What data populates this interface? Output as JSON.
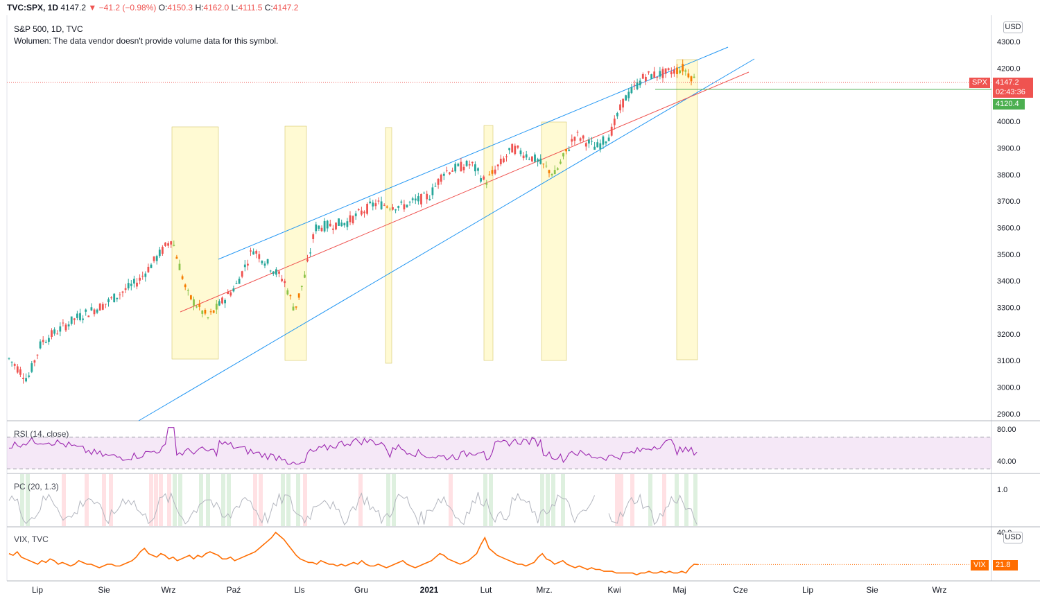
{
  "header": {
    "symbol": "TVC:SPX, 1D",
    "last": "4147.2",
    "arrow": "▼",
    "change": "−41.2 (−0.98%)",
    "o_label": "O:",
    "o_value": "4150.3",
    "h_label": "H:",
    "h_value": "4162.0",
    "l_label": "L:",
    "l_value": "4111.5",
    "c_label": "C:",
    "c_value": "4147.2"
  },
  "main_pane": {
    "title": "S&P 500, 1D, TVC",
    "volume_note": "Wolumen: The data vendor doesn't provide volume data for this symbol.",
    "currency_button": "USD",
    "price_axis": [
      "4300.0",
      "4200.0",
      "4100.0",
      "4000.0",
      "3900.0",
      "3800.0",
      "3700.0",
      "3600.0",
      "3500.0",
      "3400.0",
      "3300.0",
      "3200.0",
      "3100.0",
      "3000.0",
      "2900.0"
    ],
    "spx_tag": {
      "label": "SPX",
      "price": "4147.2",
      "countdown": "02:43:36",
      "color": "#ef5350"
    },
    "green_tag": {
      "price": "4120.4",
      "color": "#4caf50"
    }
  },
  "rsi_pane": {
    "title": "RSI (14, close)",
    "axis": [
      "80.00",
      "40.00"
    ]
  },
  "pc_pane": {
    "title": "PC (20, 1.3)",
    "axis": [
      "1.0"
    ]
  },
  "vix_pane": {
    "title": "VIX, TVC",
    "axis": [
      "40.0"
    ],
    "currency_button": "USD",
    "tag": {
      "label": "VIX",
      "value": "21.8",
      "color": "#ff6d00"
    }
  },
  "time_axis": [
    "Lip",
    "Sie",
    "Wrz",
    "Paź",
    "Lls",
    "Gru",
    "2021",
    "Lut",
    "Mrz.",
    "Kwi",
    "Maj",
    "Cze",
    "Lip",
    "Sie",
    "Wrz"
  ],
  "chart_data": {
    "type": "candlestick",
    "price_range": [
      2860,
      4330
    ],
    "highlight_bands": [
      {
        "start": "2020-09-03",
        "end": "2020-09-25"
      },
      {
        "start": "2020-10-29",
        "end": "2020-11-09"
      },
      {
        "start": "2020-12-18",
        "end": "2020-12-21"
      },
      {
        "start": "2021-01-29",
        "end": "2021-02-03"
      },
      {
        "start": "2021-03-01",
        "end": "2021-03-12"
      },
      {
        "start": "2021-04-26",
        "end": "2021-05-06"
      }
    ],
    "vix_series": [
      28,
      27,
      29,
      26,
      25,
      24,
      23,
      22,
      24,
      23,
      25,
      24,
      22,
      23,
      22,
      21,
      22,
      24,
      23,
      22,
      22,
      21,
      20,
      21,
      22,
      22,
      21,
      21,
      22,
      23,
      24,
      26,
      29,
      31,
      28,
      27,
      26,
      28,
      27,
      25,
      26,
      24,
      25,
      26,
      27,
      25,
      27,
      26,
      28,
      29,
      28,
      27,
      25,
      25,
      26,
      24,
      25,
      26,
      27,
      28,
      29,
      31,
      33,
      35,
      37,
      40,
      38,
      36,
      33,
      30,
      27,
      25,
      24,
      23,
      23,
      22,
      24,
      23,
      22,
      22,
      21,
      22,
      21,
      22,
      23,
      22,
      24,
      22,
      21,
      21,
      22,
      21,
      20,
      21,
      22,
      23,
      24,
      22,
      21,
      20,
      21,
      22,
      23,
      24,
      26,
      28,
      27,
      25,
      24,
      23,
      22,
      23,
      24,
      26,
      28,
      33,
      37,
      31,
      29,
      27,
      26,
      25,
      24,
      23,
      22,
      22,
      21,
      22,
      23,
      26,
      28,
      25,
      24,
      22,
      23,
      24,
      22,
      21,
      20,
      21,
      20,
      19,
      20,
      19,
      19,
      18,
      18,
      18,
      17,
      17,
      17,
      17,
      17,
      16,
      17,
      17,
      18,
      17,
      17,
      18,
      17,
      18,
      17,
      17,
      18,
      17,
      20,
      22,
      21.8
    ]
  }
}
